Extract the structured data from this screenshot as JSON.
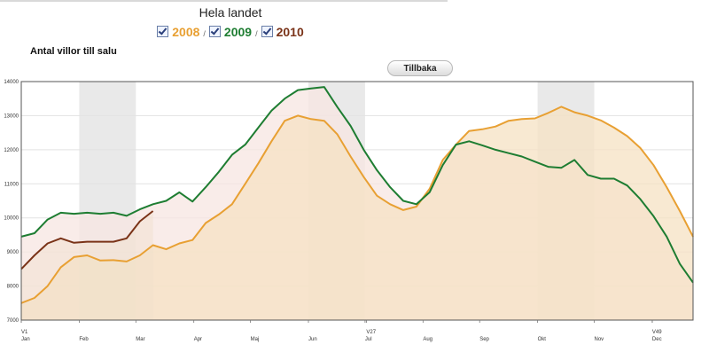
{
  "header": {
    "region": "Hela landet",
    "years": [
      {
        "label": "2008",
        "color": "#e8a033",
        "checked": true
      },
      {
        "label": "2009",
        "color": "#1e7d32",
        "checked": true
      },
      {
        "label": "2010",
        "color": "#7a3318",
        "checked": true
      }
    ],
    "separator": "/"
  },
  "back_button": {
    "label": "Tillbaka"
  },
  "chart_data": {
    "type": "area",
    "title": "Antal villor till salu",
    "xlabel": "",
    "ylabel": "",
    "x_range": [
      1,
      52
    ],
    "ylim": [
      7000,
      14000
    ],
    "y_ticks": [
      7000,
      8000,
      9000,
      10000,
      11000,
      12000,
      13000,
      14000
    ],
    "x_ticks": [
      {
        "label": "V1",
        "week": 1,
        "row": 1
      },
      {
        "label": "Jan",
        "week": 1,
        "row": 2
      },
      {
        "label": "Feb",
        "week": 5.4,
        "row": 2
      },
      {
        "label": "Mar",
        "week": 9.7,
        "row": 2
      },
      {
        "label": "Apr",
        "week": 14.1,
        "row": 2
      },
      {
        "label": "Maj",
        "week": 18.4,
        "row": 2
      },
      {
        "label": "Jun",
        "week": 22.8,
        "row": 2
      },
      {
        "label": "Jul",
        "week": 27.1,
        "row": 2
      },
      {
        "label": "V27",
        "week": 27.2,
        "row": 1
      },
      {
        "label": "Aug",
        "week": 31.5,
        "row": 2
      },
      {
        "label": "Sep",
        "week": 35.8,
        "row": 2
      },
      {
        "label": "Okt",
        "week": 40.2,
        "row": 2
      },
      {
        "label": "Nov",
        "week": 44.5,
        "row": 2
      },
      {
        "label": "V49",
        "week": 48.9,
        "row": 1
      },
      {
        "label": "Dec",
        "week": 48.9,
        "row": 2
      }
    ],
    "shaded_months": [
      [
        5.4,
        9.7
      ],
      [
        22.8,
        27.1
      ],
      [
        40.2,
        44.5
      ]
    ],
    "grid": true,
    "series": [
      {
        "name": "2008",
        "color": "#e8a033",
        "fill": "#f6e2c3",
        "values": [
          7500,
          7650,
          8000,
          8550,
          8850,
          8900,
          8750,
          8760,
          8720,
          8900,
          9200,
          9080,
          9250,
          9350,
          9850,
          10100,
          10400,
          11000,
          11600,
          12250,
          12850,
          13000,
          12900,
          12850,
          12450,
          11800,
          11200,
          10650,
          10400,
          10230,
          10330,
          10850,
          11700,
          12150,
          12550,
          12600,
          12680,
          12850,
          12900,
          12920,
          13080,
          13260,
          13100,
          13000,
          12860,
          12650,
          12400,
          12050,
          11550,
          10900,
          10200,
          9450
        ]
      },
      {
        "name": "2009",
        "color": "#1e7d32",
        "fill": "#f7e6e2",
        "values": [
          9450,
          9550,
          9950,
          10150,
          10120,
          10150,
          10120,
          10150,
          10060,
          10250,
          10400,
          10500,
          10750,
          10480,
          10900,
          11350,
          11850,
          12150,
          12650,
          13150,
          13500,
          13750,
          13800,
          13840,
          13250,
          12700,
          12000,
          11400,
          10900,
          10500,
          10400,
          10750,
          11550,
          12150,
          12250,
          12130,
          12000,
          11900,
          11800,
          11650,
          11500,
          11470,
          11700,
          11260,
          11150,
          11150,
          10950,
          10550,
          10050,
          9450,
          8650,
          8100
        ]
      },
      {
        "name": "2010",
        "color": "#7a3318",
        "values": [
          8500,
          8900,
          9250,
          9400,
          9270,
          9300,
          9300,
          9300,
          9400,
          9900,
          10200
        ]
      }
    ]
  }
}
